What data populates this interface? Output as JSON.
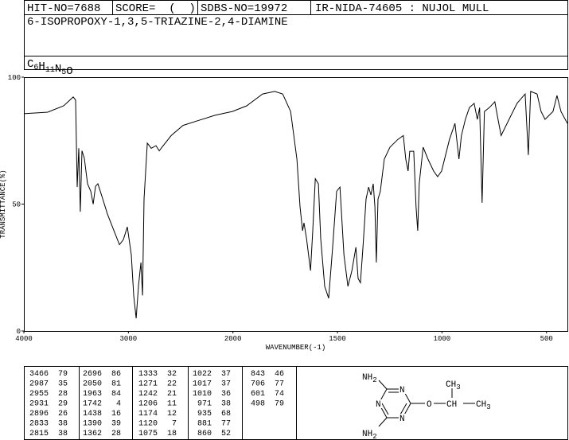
{
  "header": {
    "hit_no": "HIT-NO=7688",
    "score": "SCORE=  (  )",
    "sdbs_no": "SDBS-NO=19972",
    "ir_code": "IR-NIDA-74605 : NUJOL MULL",
    "name": "6-ISOPROPOXY-1,3,5-TRIAZINE-2,4-DIAMINE",
    "formula": [
      {
        "t": "C",
        "s": "6"
      },
      {
        "t": "H",
        "s": "11"
      },
      {
        "t": "N",
        "s": "5"
      },
      {
        "t": "O"
      }
    ]
  },
  "chart_data": {
    "type": "line",
    "xlabel": "WAVENUMBER(-1)",
    "ylabel": "TRANSMITTANCE(%)",
    "xlim": [
      4000,
      400
    ],
    "x_scale_break": 2000,
    "x_scale_factor": 2,
    "xticks": [
      4000,
      3000,
      2000,
      1500,
      1000,
      500
    ],
    "ylim": [
      0,
      100
    ],
    "yticks": [
      0,
      50,
      100
    ],
    "series": [
      {
        "color": "#000000",
        "x": [
          4000,
          3772,
          3619,
          3528,
          3505,
          3490,
          3475,
          3460,
          3444,
          3421,
          3391,
          3360,
          3337,
          3315,
          3292,
          3261,
          3200,
          3124,
          3086,
          3048,
          3010,
          2972,
          2949,
          2926,
          2903,
          2880,
          2865,
          2850,
          2819,
          2781,
          2736,
          2705,
          2667,
          2591,
          2477,
          2324,
          2172,
          2005,
          1934,
          1858,
          1800,
          1762,
          1724,
          1694,
          1679,
          1667,
          1660,
          1648,
          1629,
          1618,
          1606,
          1591,
          1580,
          1561,
          1542,
          1523,
          1504,
          1488,
          1469,
          1450,
          1431,
          1412,
          1401,
          1390,
          1378,
          1363,
          1351,
          1340,
          1329,
          1321,
          1314,
          1306,
          1295,
          1276,
          1249,
          1211,
          1185,
          1173,
          1162,
          1154,
          1135,
          1124,
          1116,
          1109,
          1090,
          1067,
          1040,
          1021,
          1002,
          964,
          938,
          919,
          907,
          888,
          869,
          846,
          831,
          820,
          808,
          797,
          774,
          747,
          732,
          717,
          679,
          641,
          602,
          587,
          576,
          545,
          526,
          507,
          469,
          450,
          431,
          400
        ],
        "values": [
          85.6,
          86.2,
          88.7,
          92.2,
          91,
          56.7,
          72,
          47,
          71,
          68,
          58,
          55,
          50,
          57,
          58,
          54,
          46,
          38,
          34,
          36,
          41,
          30,
          14,
          5,
          18,
          27,
          14,
          52,
          74,
          72,
          73,
          71,
          73,
          77,
          81,
          83,
          85,
          86.5,
          88.7,
          93.4,
          94.4,
          93.4,
          86.5,
          67.7,
          49,
          39.5,
          42.6,
          36.4,
          23.8,
          39.5,
          60,
          58,
          36.4,
          17.6,
          12.9,
          33,
          55,
          56.7,
          30,
          17.6,
          23.8,
          33,
          20.7,
          19,
          33,
          52,
          56.7,
          53.6,
          58,
          49,
          27,
          52,
          55,
          67.7,
          72.4,
          75.5,
          77,
          67.7,
          63,
          70.8,
          70.8,
          49,
          39.5,
          58,
          72.4,
          67.7,
          63,
          60.8,
          63,
          75.5,
          81.8,
          67.7,
          77,
          83.4,
          88,
          89.7,
          83.4,
          88,
          50.5,
          86.5,
          88,
          90.3,
          83.4,
          77,
          83.4,
          89.7,
          93.4,
          69.3,
          94.4,
          93.4,
          86.5,
          83.4,
          86.5,
          92.8,
          86.5,
          81.8
        ]
      }
    ]
  },
  "peaks": [
    [
      [
        3466,
        79
      ],
      [
        2987,
        35
      ],
      [
        2955,
        28
      ],
      [
        2931,
        29
      ],
      [
        2896,
        26
      ],
      [
        2833,
        38
      ],
      [
        2815,
        38
      ]
    ],
    [
      [
        2696,
        86
      ],
      [
        2050,
        81
      ],
      [
        1963,
        84
      ],
      [
        1742,
        4
      ],
      [
        1438,
        16
      ],
      [
        1390,
        39
      ],
      [
        1362,
        28
      ]
    ],
    [
      [
        1333,
        32
      ],
      [
        1271,
        22
      ],
      [
        1242,
        21
      ],
      [
        1206,
        11
      ],
      [
        1174,
        12
      ],
      [
        1120,
        7
      ],
      [
        1075,
        18
      ]
    ],
    [
      [
        1022,
        37
      ],
      [
        1017,
        37
      ],
      [
        1010,
        36
      ],
      [
        971,
        38
      ],
      [
        935,
        68
      ],
      [
        881,
        77
      ],
      [
        860,
        52
      ]
    ],
    [
      [
        843,
        46
      ],
      [
        706,
        77
      ],
      [
        601,
        74
      ],
      [
        498,
        79
      ]
    ]
  ],
  "structure": {
    "labels": [
      {
        "t": "NH",
        "s": "2"
      },
      {
        "t": "N"
      },
      {
        "t": "N"
      },
      {
        "t": "N"
      },
      {
        "t": "NH",
        "s": "2"
      },
      {
        "t": "O"
      },
      {
        "t": "CH",
        "s": "3"
      },
      {
        "t": "CH"
      },
      {
        "t": "CH",
        "s": "3"
      }
    ]
  }
}
